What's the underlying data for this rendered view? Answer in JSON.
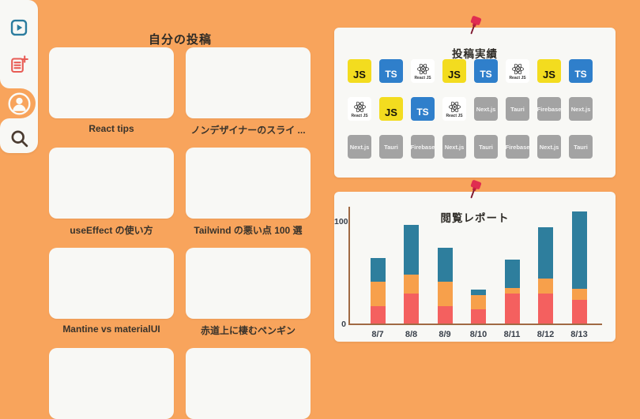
{
  "sidebar": {
    "items": [
      {
        "id": "videos",
        "icon": "play-icon",
        "active": false
      },
      {
        "id": "new-post",
        "icon": "new-post-icon",
        "active": false
      },
      {
        "id": "profile",
        "icon": "profile-icon",
        "active": true
      },
      {
        "id": "search",
        "icon": "search-icon",
        "active": false
      }
    ]
  },
  "posts": {
    "title": "自分の投稿",
    "items": [
      {
        "caption": "React tips"
      },
      {
        "caption": "ノンデザイナーのスライ ..."
      },
      {
        "caption": "useEffect の使い方"
      },
      {
        "caption": "Tailwind の悪い点 100 選"
      },
      {
        "caption": "Mantine vs materialUI"
      },
      {
        "caption": "赤道上に棲むペンギン"
      },
      {
        "caption": ""
      },
      {
        "caption": ""
      }
    ]
  },
  "achievements": {
    "title": "投稿実績",
    "badges": [
      {
        "type": "js",
        "label": "JS"
      },
      {
        "type": "ts",
        "label": "TS"
      },
      {
        "type": "react",
        "label": "React JS"
      },
      {
        "type": "js",
        "label": "JS"
      },
      {
        "type": "ts",
        "label": "TS"
      },
      {
        "type": "react",
        "label": "React JS"
      },
      {
        "type": "js",
        "label": "JS"
      },
      {
        "type": "ts",
        "label": "TS"
      },
      {
        "type": "react",
        "label": "React JS"
      },
      {
        "type": "js",
        "label": "JS"
      },
      {
        "type": "ts",
        "label": "TS"
      },
      {
        "type": "react",
        "label": "React JS"
      },
      {
        "type": "gray",
        "label": "Next.js"
      },
      {
        "type": "gray",
        "label": "Tauri"
      },
      {
        "type": "gray",
        "label": "Firebase"
      },
      {
        "type": "gray",
        "label": "Next.js"
      },
      {
        "type": "gray",
        "label": "Next.js"
      },
      {
        "type": "gray",
        "label": "Tauri"
      },
      {
        "type": "gray",
        "label": "Firebase"
      },
      {
        "type": "gray",
        "label": "Next.js"
      },
      {
        "type": "gray",
        "label": "Tauri"
      },
      {
        "type": "gray",
        "label": "Firebase"
      },
      {
        "type": "gray",
        "label": "Next.js"
      },
      {
        "type": "gray",
        "label": "Tauri"
      }
    ]
  },
  "report": {
    "title": "閲覧レポート"
  },
  "chart_data": {
    "type": "bar",
    "stacked": true,
    "title": "閲覧レポート",
    "categories": [
      "8/7",
      "8/8",
      "8/9",
      "8/10",
      "8/11",
      "8/12",
      "8/13"
    ],
    "series": [
      {
        "name": "red",
        "color": "#F4605F",
        "values": [
          17,
          29,
          17,
          14,
          29,
          29,
          23
        ]
      },
      {
        "name": "orange",
        "color": "#F7A04B",
        "values": [
          24,
          19,
          24,
          14,
          6,
          15,
          11
        ]
      },
      {
        "name": "teal",
        "color": "#2E7E9D",
        "values": [
          23,
          48,
          33,
          5,
          27,
          50,
          75
        ]
      }
    ],
    "yticks": [
      0,
      100
    ],
    "ylim": [
      0,
      115
    ],
    "xlabel": "",
    "ylabel": "",
    "grid": false,
    "legend": false
  },
  "colors": {
    "background": "#F8A45C",
    "panel": "#F8F8F5",
    "pin": "#E02D50",
    "axis": "#A06A43",
    "badge_js": "#F3DC1F",
    "badge_ts": "#2F7FCB",
    "badge_gray": "#A3A3A3"
  }
}
